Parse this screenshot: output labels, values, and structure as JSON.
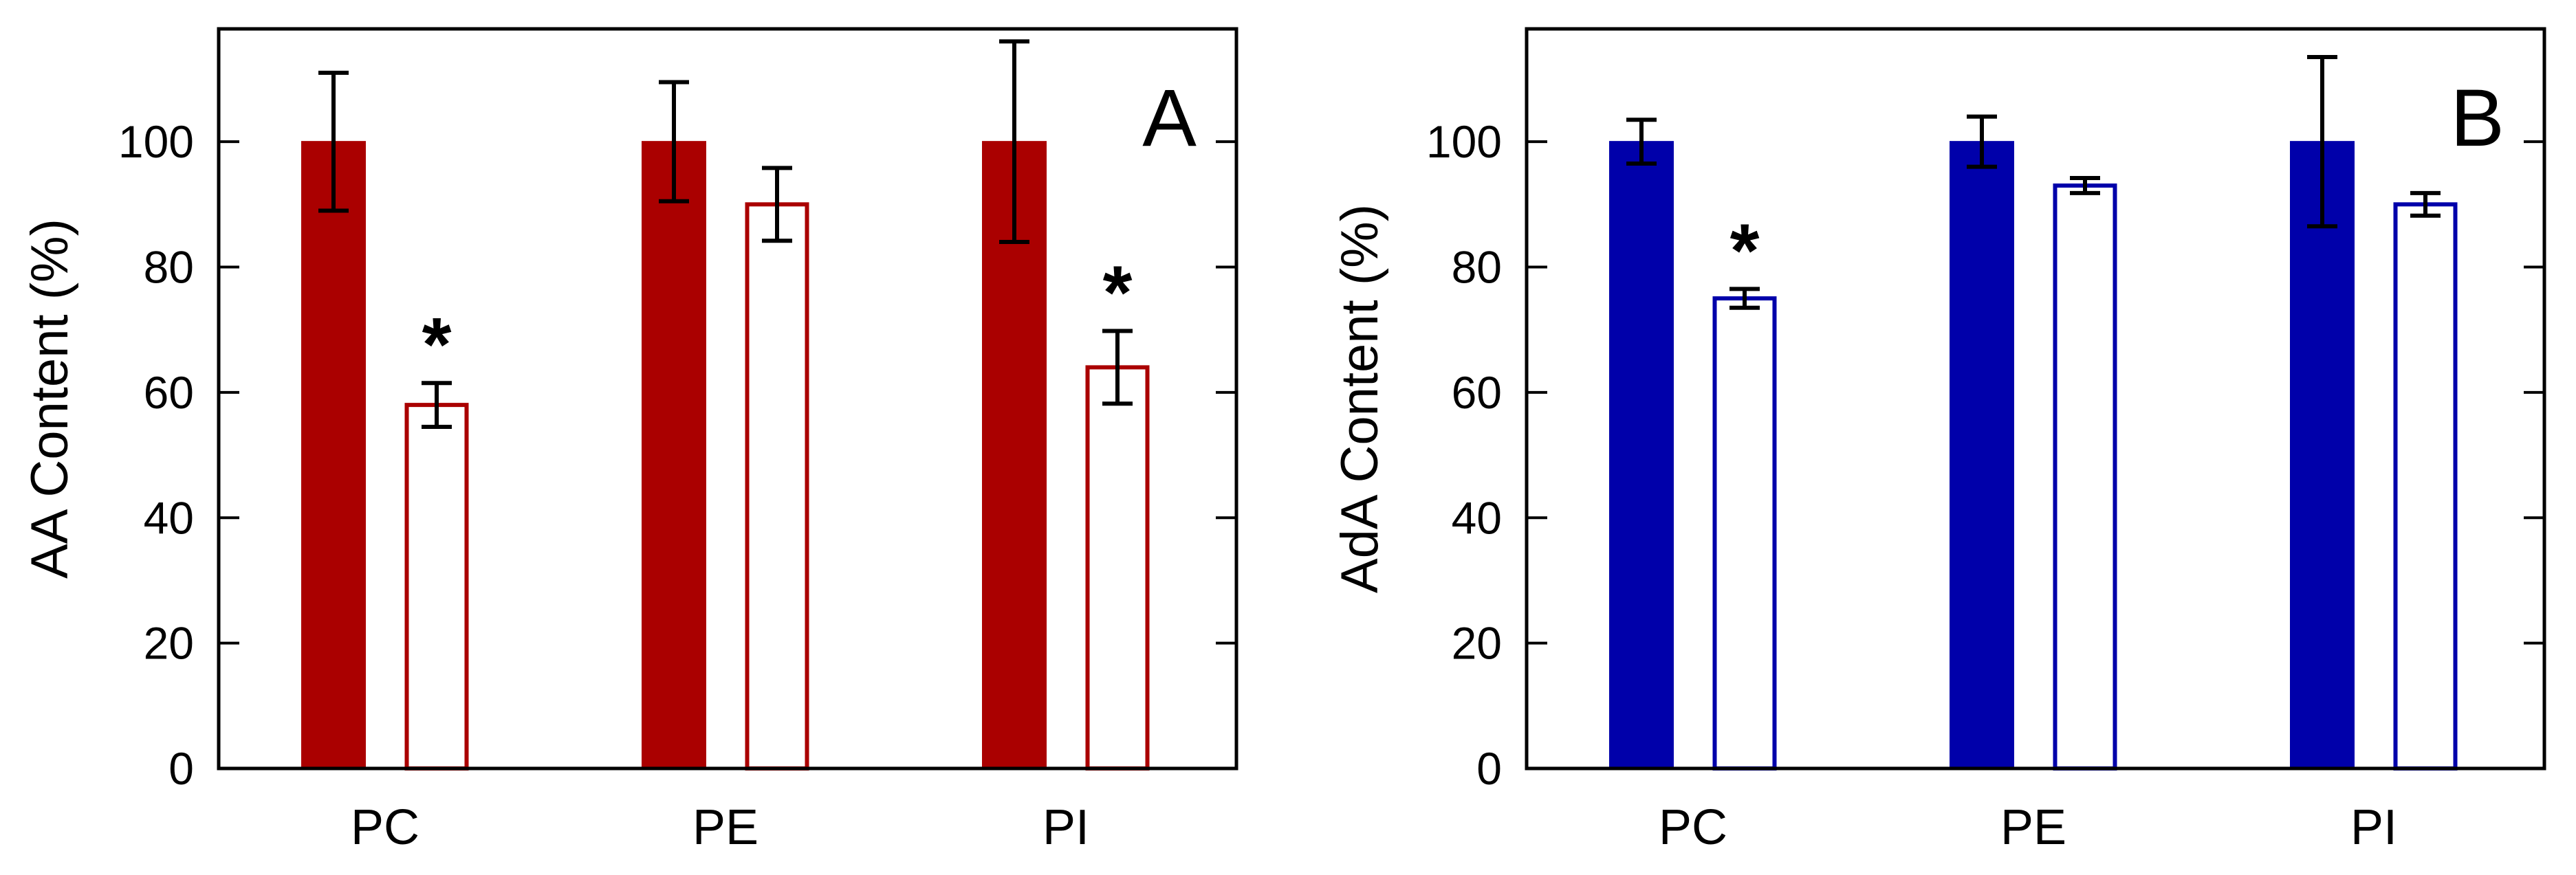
{
  "chart_data": [
    {
      "type": "bar",
      "panel_label": "A",
      "ylabel": "AA Content (%)",
      "xlabel": "",
      "categories": [
        "PC",
        "PE",
        "PI"
      ],
      "ylim": [
        0,
        118
      ],
      "yticks": [
        0,
        20,
        40,
        60,
        80,
        100
      ],
      "colors": {
        "fill": "#aa0000",
        "outline": "#aa0000"
      },
      "series": [
        {
          "name": "filled",
          "style": "filled",
          "values": [
            100,
            100,
            100
          ],
          "errors": [
            11,
            9.5,
            16
          ]
        },
        {
          "name": "open",
          "style": "open",
          "values": [
            58,
            90,
            64
          ],
          "errors": [
            3.5,
            5.8,
            5.8
          ]
        }
      ],
      "annotations": [
        {
          "text": "*",
          "category": "PC",
          "series": "open"
        },
        {
          "text": "*",
          "category": "PI",
          "series": "open"
        }
      ]
    },
    {
      "type": "bar",
      "panel_label": "B",
      "ylabel": "AdA Content (%)",
      "xlabel": "",
      "categories": [
        "PC",
        "PE",
        "PI"
      ],
      "ylim": [
        0,
        118
      ],
      "yticks": [
        0,
        20,
        40,
        60,
        80,
        100
      ],
      "colors": {
        "fill": "#0000aa",
        "outline": "#0000aa"
      },
      "series": [
        {
          "name": "filled",
          "style": "filled",
          "values": [
            100,
            100,
            100
          ],
          "errors": [
            3.5,
            4,
            13.5
          ]
        },
        {
          "name": "open",
          "style": "open",
          "values": [
            75,
            93,
            90
          ],
          "errors": [
            1.5,
            1.2,
            1.8
          ]
        }
      ],
      "annotations": [
        {
          "text": "*",
          "category": "PC",
          "series": "open"
        }
      ]
    }
  ]
}
